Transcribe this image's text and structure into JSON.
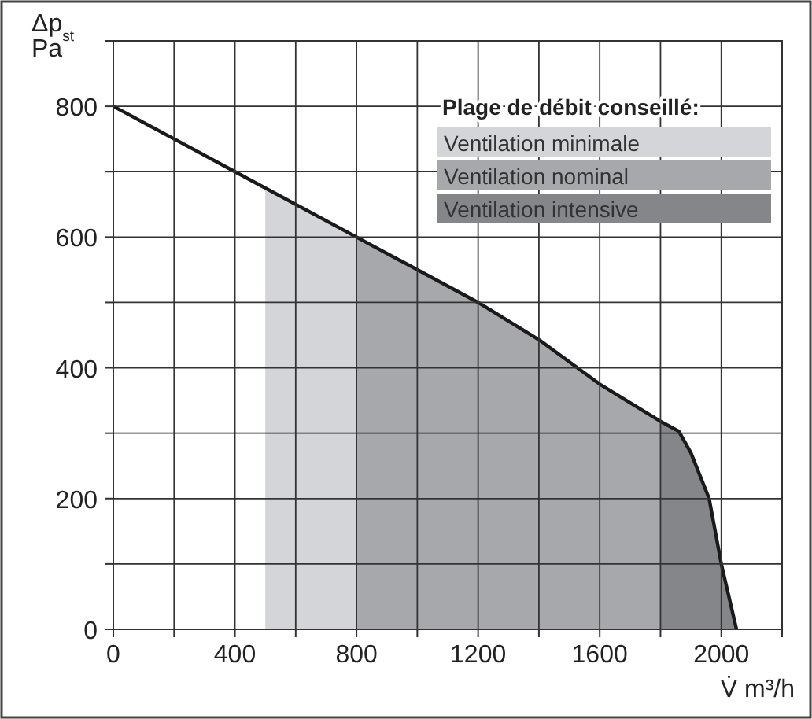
{
  "chart_data": {
    "type": "line",
    "legend_title": "Plage de débit conseillé:",
    "xlabel": "V̇ m³/h",
    "ylabel": "Δp$_{st}$\nPa",
    "xlim": [
      0,
      2200
    ],
    "xticks": [
      0,
      {
        "value": 200,
        "label": null
      },
      400,
      {
        "value": 600,
        "label": null
      },
      800,
      {
        "value": 1000,
        "label": null
      },
      1200,
      {
        "value": 1400,
        "label": null
      },
      1600,
      {
        "value": 1800,
        "label": null
      },
      2000,
      {
        "value": 2200,
        "label": null
      }
    ],
    "ylim": [
      0,
      900
    ],
    "yticks": [
      0,
      {
        "value": 100,
        "label": null
      },
      200,
      {
        "value": 300,
        "label": null
      },
      400,
      {
        "value": 500,
        "label": null
      },
      600,
      {
        "value": 700,
        "label": null
      },
      800,
      {
        "value": 900,
        "label": null
      }
    ],
    "grid": true,
    "legend": "top right",
    "series": [
      {
        "name": "Ventilation minimale",
        "type": "area",
        "color": "#d4d5d8",
        "x": [
          500,
          800
        ],
        "values": [
          675,
          600
        ]
      },
      {
        "name": "Ventilation nominal",
        "type": "area",
        "color": "#a7a8ab",
        "x": [
          800,
          1200,
          1400,
          1600,
          1800
        ],
        "values": [
          600,
          500,
          443,
          375,
          318
        ]
      },
      {
        "name": "Ventilation intensive",
        "type": "area",
        "color": "#858689",
        "x": [
          1800,
          1860,
          1900,
          1960,
          2000,
          2050
        ],
        "values": [
          318,
          303,
          270,
          200,
          100,
          0
        ]
      },
      {
        "color": "#1a1a1a",
        "x": [
          0,
          400,
          800,
          1200,
          1400,
          1600,
          1800,
          1860,
          1900,
          1960,
          2000,
          2050
        ],
        "values": [
          800,
          700,
          600,
          500,
          443,
          375,
          318,
          303,
          270,
          200,
          100,
          0
        ]
      }
    ]
  }
}
